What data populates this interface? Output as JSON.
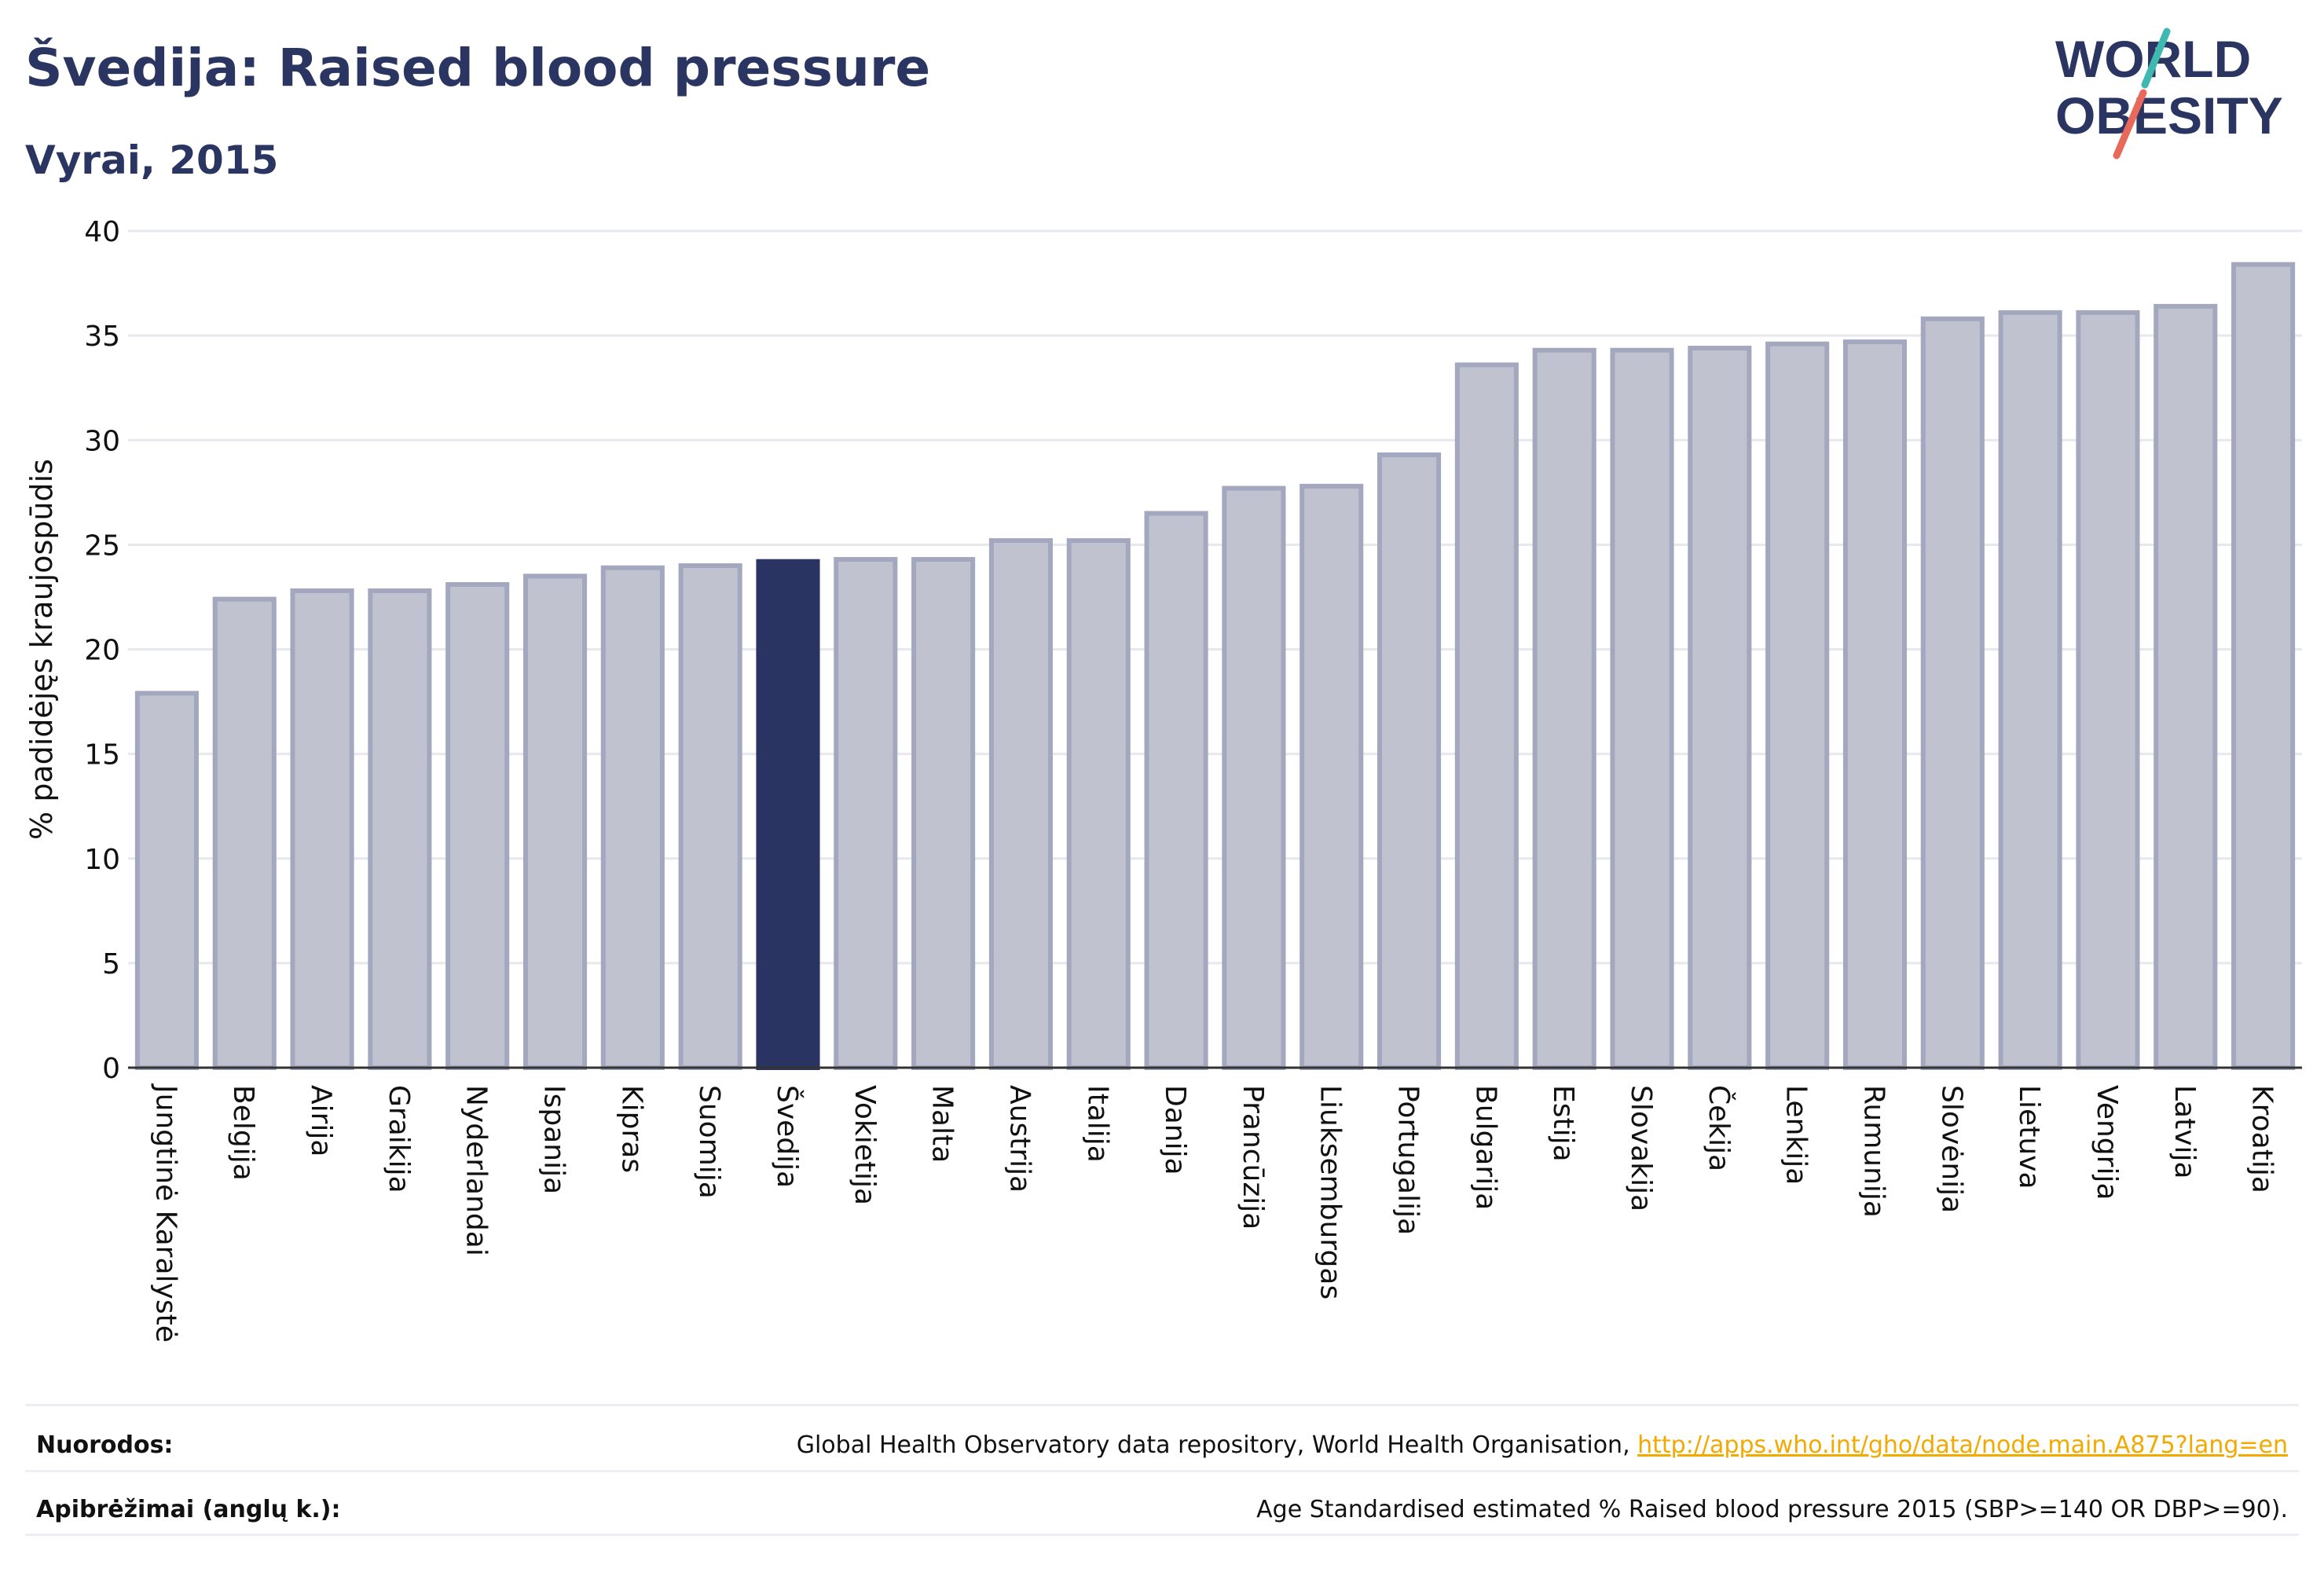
{
  "header": {
    "title": "Švedija: Raised blood pressure",
    "subtitle": "Vyrai, 2015"
  },
  "logo": {
    "line1": "WORLD",
    "line2": "OBESITY"
  },
  "colors": {
    "bar": "#c0c3cf",
    "bar_border": "#a3a8bf",
    "highlight": "#293462",
    "title": "#2b3561"
  },
  "chart_data": {
    "type": "bar",
    "ylabel": "% padidėjęs kraujospūdis",
    "ylim": [
      0,
      40
    ],
    "yticks": [
      0,
      5,
      10,
      15,
      20,
      25,
      30,
      35,
      40
    ],
    "grid": true,
    "highlight": "Švedija",
    "categories": [
      "Jungtinė Karalystė",
      "Belgija",
      "Airija",
      "Graikija",
      "Nyderlandai",
      "Ispanija",
      "Kipras",
      "Suomija",
      "Švedija",
      "Vokietija",
      "Malta",
      "Austrija",
      "Italija",
      "Danija",
      "Prancūzija",
      "Liuksemburgas",
      "Portugalija",
      "Bulgarija",
      "Estija",
      "Slovakija",
      "Čekija",
      "Lenkija",
      "Rumunija",
      "Slovėnija",
      "Lietuva",
      "Vengrija",
      "Latvija",
      "Kroatija"
    ],
    "values": [
      17.9,
      22.4,
      22.8,
      22.8,
      23.1,
      23.5,
      23.9,
      24.0,
      24.2,
      24.3,
      24.3,
      25.2,
      25.2,
      26.5,
      27.7,
      27.8,
      29.3,
      33.6,
      34.3,
      34.3,
      34.4,
      34.6,
      34.7,
      35.8,
      36.1,
      36.1,
      36.4,
      38.4
    ]
  },
  "footer": {
    "sources_label": "Nuorodos:",
    "sources_text": "Global Health Observatory data repository, World Health Organisation, ",
    "sources_link": "http://apps.who.int/gho/data/node.main.A875?lang=en",
    "definitions_label": "Apibrėžimai (anglų k.):",
    "definitions_text": "Age Standardised estimated % Raised blood pressure 2015 (SBP>=140 OR DBP>=90)."
  }
}
